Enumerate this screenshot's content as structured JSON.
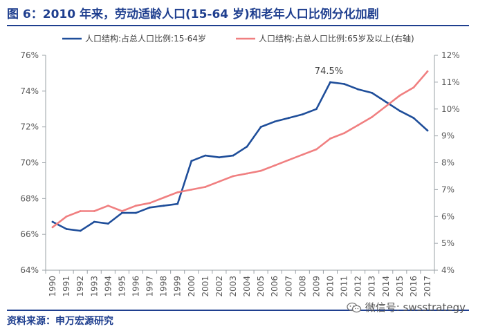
{
  "header": {
    "title": "图 6：2010 年来，劳动适龄人口(15-64 岁)和老年人口比例分化加剧"
  },
  "footer": {
    "source": "资料来源：申万宏源研究",
    "watermark": "微信号: swsstrategy"
  },
  "colors": {
    "brand": "#1f3f8f",
    "series1": "#1f4e9a",
    "series2": "#f07f80",
    "axis": "#9aa0a6"
  },
  "chart_data": {
    "type": "line",
    "x": [
      1990,
      1991,
      1992,
      1993,
      1994,
      1995,
      1996,
      1997,
      1998,
      1999,
      2000,
      2001,
      2002,
      2003,
      2004,
      2005,
      2006,
      2007,
      2008,
      2009,
      2010,
      2011,
      2012,
      2013,
      2014,
      2015,
      2016,
      2017
    ],
    "x_tick_labels": [
      "1990",
      "1991",
      "1992",
      "1993",
      "1994",
      "1995",
      "1996",
      "1997",
      "1998",
      "1999",
      "2000",
      "2001",
      "2002",
      "2003",
      "2004",
      "2005",
      "2006",
      "2007",
      "2008",
      "2009",
      "2010",
      "2011",
      "2012",
      "2013",
      "2014",
      "2015",
      "2016",
      "2017"
    ],
    "left_axis": {
      "ylim": [
        64,
        76
      ],
      "ticks": [
        "64%",
        "66%",
        "68%",
        "70%",
        "72%",
        "74%",
        "76%"
      ],
      "tick_values": [
        64,
        66,
        68,
        70,
        72,
        74,
        76
      ]
    },
    "right_axis": {
      "ylim": [
        4,
        12
      ],
      "ticks": [
        "4%",
        "5%",
        "6%",
        "7%",
        "8%",
        "9%",
        "10%",
        "11%",
        "12%"
      ],
      "tick_values": [
        4,
        5,
        6,
        7,
        8,
        9,
        10,
        11,
        12
      ]
    },
    "series": [
      {
        "name": "人口结构:占总人口比例:15-64岁",
        "axis": "left",
        "color": "#1f4e9a",
        "values": [
          66.7,
          66.3,
          66.2,
          66.7,
          66.6,
          67.2,
          67.2,
          67.5,
          67.6,
          67.7,
          70.1,
          70.4,
          70.3,
          70.4,
          70.9,
          72.0,
          72.3,
          72.5,
          72.7,
          73.0,
          74.5,
          74.4,
          74.1,
          73.9,
          73.4,
          72.9,
          72.5,
          71.8
        ]
      },
      {
        "name": "人口结构:占总人口比例:65岁及以上(右轴)",
        "axis": "right",
        "color": "#f07f80",
        "values": [
          5.6,
          6.0,
          6.2,
          6.2,
          6.4,
          6.2,
          6.4,
          6.5,
          6.7,
          6.9,
          7.0,
          7.1,
          7.3,
          7.5,
          7.6,
          7.7,
          7.9,
          8.1,
          8.3,
          8.5,
          8.9,
          9.1,
          9.4,
          9.7,
          10.1,
          10.5,
          10.8,
          11.4
        ]
      }
    ],
    "annotations": [
      {
        "text": "74.5%",
        "x": 2010,
        "series": 0
      }
    ],
    "legend": "top",
    "grid": false
  }
}
